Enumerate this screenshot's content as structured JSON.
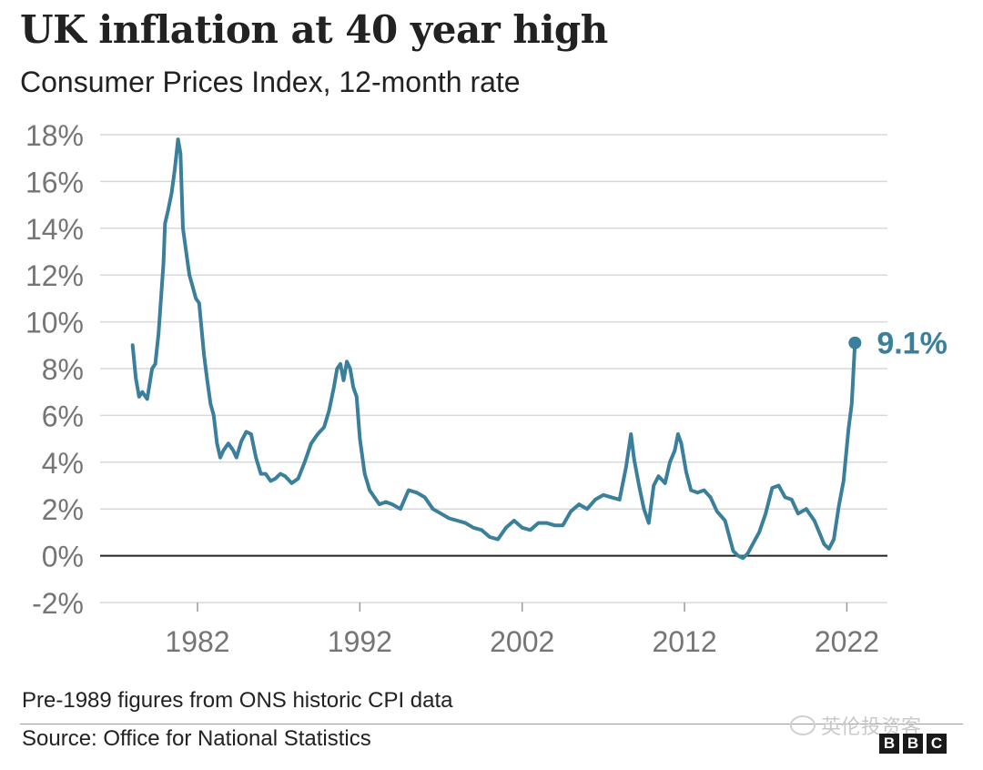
{
  "header": {
    "title": "UK inflation at 40 year high",
    "subtitle": "Consumer Prices Index, 12-month rate"
  },
  "chart_data": {
    "type": "line",
    "title": "UK inflation at 40 year high",
    "subtitle": "Consumer Prices Index, 12-month rate",
    "xlabel": "",
    "ylabel": "",
    "xlim": [
      1976,
      2024.5
    ],
    "ylim": [
      -2,
      18
    ],
    "y_ticks": [
      -2,
      0,
      2,
      4,
      6,
      8,
      10,
      12,
      14,
      16,
      18
    ],
    "y_tick_labels": [
      "-2%",
      "0%",
      "2%",
      "4%",
      "6%",
      "8%",
      "10%",
      "12%",
      "14%",
      "16%",
      "18%"
    ],
    "x_ticks": [
      1982,
      1992,
      2002,
      2012,
      2022
    ],
    "x_tick_labels": [
      "1982",
      "1992",
      "2002",
      "2012",
      "2022"
    ],
    "grid": true,
    "line_color": "#3a7f9b",
    "zero_line_color": "#222222",
    "grid_color": "#d9d9d9",
    "series": [
      {
        "x": [
          1978.0,
          1978.2,
          1978.4,
          1978.6,
          1978.9,
          1979.2,
          1979.4,
          1979.6,
          1979.9,
          1980.0,
          1980.2,
          1980.4,
          1980.6,
          1980.8,
          1980.95,
          1981.1,
          1981.3,
          1981.5,
          1981.7,
          1981.9,
          1982.1,
          1982.4,
          1982.6,
          1982.8,
          1983.0,
          1983.2,
          1983.4,
          1983.6,
          1983.9,
          1984.2,
          1984.4,
          1984.7,
          1985.0,
          1985.3,
          1985.6,
          1985.9,
          1986.2,
          1986.5,
          1986.8,
          1987.1,
          1987.4,
          1987.8,
          1988.2,
          1988.6,
          1989.0,
          1989.4,
          1989.8,
          1990.1,
          1990.4,
          1990.6,
          1990.8,
          1991.0,
          1991.2,
          1991.4,
          1991.6,
          1991.8,
          1992.0,
          1992.3,
          1992.6,
          1992.9,
          1993.2,
          1993.6,
          1994.0,
          1994.5,
          1995.0,
          1995.5,
          1996.0,
          1996.5,
          1997.0,
          1997.5,
          1998.0,
          1998.5,
          1999.0,
          1999.5,
          2000.0,
          2000.5,
          2001.0,
          2001.5,
          2002.0,
          2002.5,
          2003.0,
          2003.5,
          2004.0,
          2004.5,
          2005.0,
          2005.5,
          2006.0,
          2006.5,
          2007.0,
          2007.5,
          2008.0,
          2008.4,
          2008.7,
          2008.9,
          2009.2,
          2009.5,
          2009.8,
          2010.1,
          2010.4,
          2010.8,
          2011.1,
          2011.4,
          2011.6,
          2011.8,
          2012.1,
          2012.4,
          2012.8,
          2013.2,
          2013.6,
          2014.0,
          2014.5,
          2015.0,
          2015.3,
          2015.6,
          2015.9,
          2016.2,
          2016.6,
          2017.0,
          2017.4,
          2017.8,
          2018.2,
          2018.6,
          2019.0,
          2019.5,
          2020.0,
          2020.3,
          2020.6,
          2020.9,
          2021.2,
          2021.5,
          2021.8,
          2022.1,
          2022.3,
          2022.5
        ],
        "y": [
          9.0,
          7.6,
          6.8,
          7.0,
          6.7,
          8.0,
          8.2,
          9.5,
          12.5,
          14.2,
          14.8,
          15.5,
          16.5,
          17.8,
          17.2,
          14.0,
          13.0,
          12.0,
          11.5,
          11.0,
          10.8,
          8.6,
          7.5,
          6.5,
          6.0,
          4.8,
          4.2,
          4.5,
          4.8,
          4.5,
          4.2,
          4.9,
          5.3,
          5.2,
          4.2,
          3.5,
          3.5,
          3.2,
          3.3,
          3.5,
          3.4,
          3.1,
          3.3,
          4.0,
          4.8,
          5.2,
          5.5,
          6.2,
          7.2,
          8.0,
          8.2,
          7.5,
          8.3,
          8.0,
          7.2,
          6.8,
          5.0,
          3.5,
          2.8,
          2.5,
          2.2,
          2.3,
          2.2,
          2.0,
          2.8,
          2.7,
          2.5,
          2.0,
          1.8,
          1.6,
          1.5,
          1.4,
          1.2,
          1.1,
          0.8,
          0.7,
          1.2,
          1.5,
          1.2,
          1.1,
          1.4,
          1.4,
          1.3,
          1.3,
          1.9,
          2.2,
          2.0,
          2.4,
          2.6,
          2.5,
          2.4,
          3.8,
          5.2,
          4.1,
          3.0,
          2.0,
          1.4,
          3.0,
          3.4,
          3.1,
          4.0,
          4.5,
          5.2,
          4.8,
          3.6,
          2.8,
          2.7,
          2.8,
          2.5,
          1.9,
          1.5,
          0.2,
          0.0,
          -0.1,
          0.1,
          0.5,
          1.0,
          1.8,
          2.9,
          3.0,
          2.5,
          2.4,
          1.8,
          2.0,
          1.5,
          1.0,
          0.5,
          0.3,
          0.7,
          2.1,
          3.2,
          5.4,
          6.5,
          9.1
        ]
      }
    ],
    "annotations": [
      {
        "x": 2022.5,
        "y": 9.1,
        "text": "9.1%"
      }
    ]
  },
  "footer": {
    "note": "Pre-1989 figures from ONS historic CPI data",
    "source": "Source: Office for National Statistics"
  },
  "watermark": {
    "text": "英伦投资客"
  },
  "logo": {
    "letters": [
      "B",
      "B",
      "C"
    ]
  }
}
